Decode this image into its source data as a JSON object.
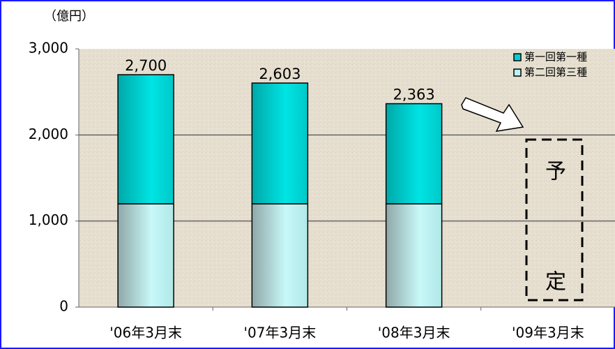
{
  "chart_data": {
    "type": "stacked_bar",
    "y_axis_label": "（億円）",
    "categories": [
      "'06年3月末",
      "'07年3月末",
      "'08年3月末",
      "'09年3月末"
    ],
    "series": [
      {
        "name": "第二回第三種",
        "color": "#b8f4f4",
        "values": [
          1200,
          1200,
          1200,
          null
        ]
      },
      {
        "name": "第一回第一種",
        "color": "#00d0d0",
        "values": [
          1500,
          1403,
          1163,
          null
        ]
      }
    ],
    "total_labels": [
      "2,700",
      "2,603",
      "2,363",
      null
    ],
    "annotations": [
      "予",
      "定"
    ],
    "ylim": [
      0,
      3000
    ],
    "yticks": [
      0,
      {
        "value": 1000,
        "label": "1,000"
      },
      {
        "value": 2000,
        "label": "2,000"
      },
      {
        "value": 3000,
        "label": "3,000"
      }
    ],
    "grid": true,
    "legend": "top-right"
  }
}
